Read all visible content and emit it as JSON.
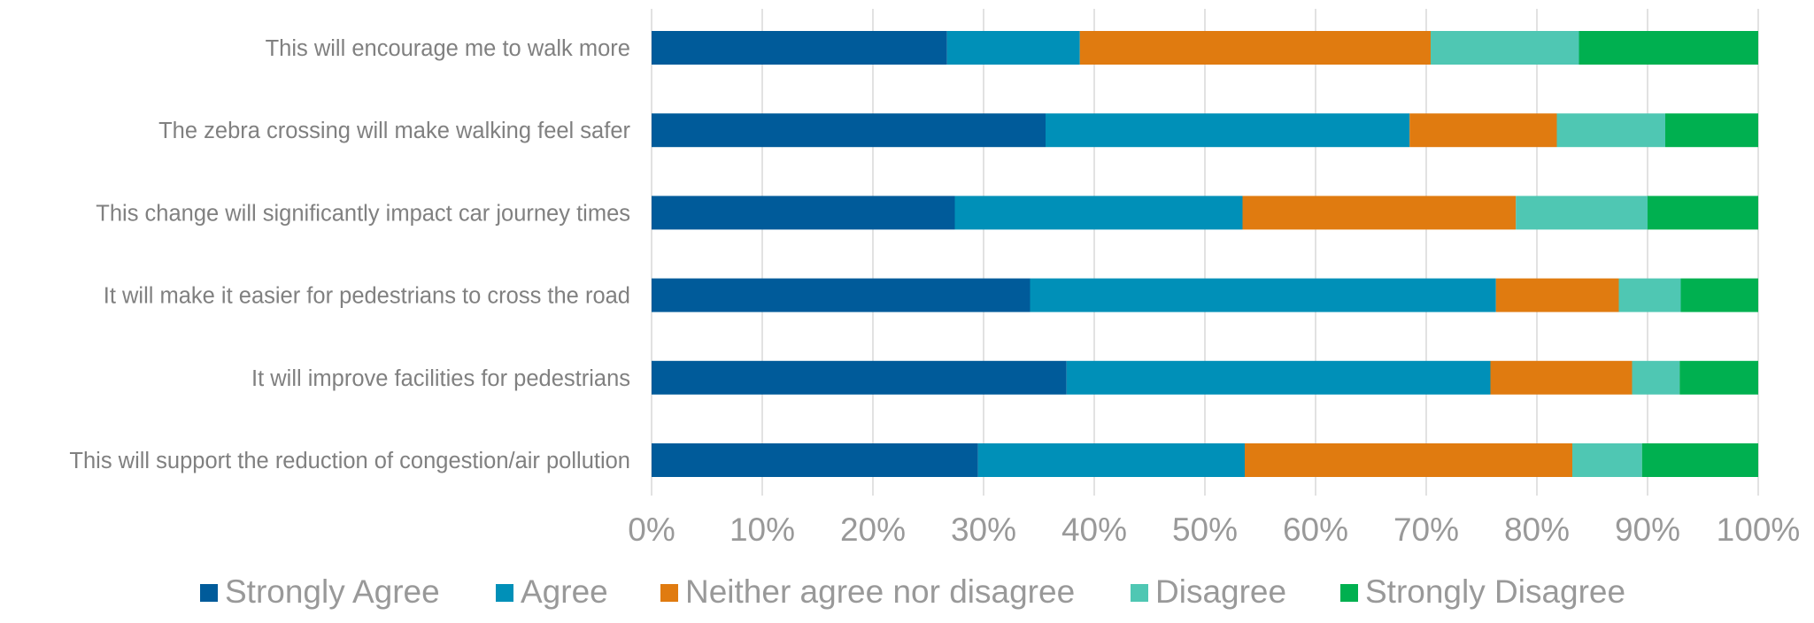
{
  "chart_data": {
    "type": "bar",
    "orientation": "horizontal",
    "stacked": "percent",
    "title": "",
    "xlabel": "",
    "ylabel": "",
    "xlim": [
      0,
      100
    ],
    "grid": true,
    "legend_position": "bottom",
    "categories": [
      "This will encourage me to walk more",
      "The zebra crossing will make walking feel safer",
      "This change will significantly impact car journey times",
      "It will make it easier for pedestrians to cross the road",
      "It will improve facilities for pedestrians ",
      "This will support the reduction of congestion/air pollution"
    ],
    "x_ticks": [
      "0%",
      "10%",
      "20%",
      "30%",
      "40%",
      "50%",
      "60%",
      "70%",
      "80%",
      "90%",
      "100%"
    ],
    "x_tick_values": [
      0,
      10,
      20,
      30,
      40,
      50,
      60,
      70,
      80,
      90,
      100
    ],
    "series": [
      {
        "name": "Strongly Agree",
        "color": "#005b9a",
        "values": [
          26.7,
          35.6,
          27.4,
          34.2,
          37.5,
          29.5
        ]
      },
      {
        "name": "Agree",
        "color": "#0090b8",
        "values": [
          12.0,
          32.9,
          26.0,
          42.1,
          38.3,
          24.1
        ]
      },
      {
        "name": "Neither agree nor disagree",
        "color": "#e07b10",
        "values": [
          31.7,
          13.3,
          24.7,
          11.1,
          12.8,
          29.6
        ]
      },
      {
        "name": "Disagree",
        "color": "#4fc7b3",
        "values": [
          13.4,
          9.8,
          11.9,
          5.6,
          4.3,
          6.3
        ]
      },
      {
        "name": "Strongly Disagree",
        "color": "#00b050",
        "values": [
          16.2,
          8.4,
          10.0,
          7.0,
          7.1,
          10.5
        ]
      }
    ]
  },
  "colors": {
    "gridline": "#d9d9d9",
    "tick_label": "#999999",
    "category_label": "#808080",
    "legend_label": "#999999"
  }
}
